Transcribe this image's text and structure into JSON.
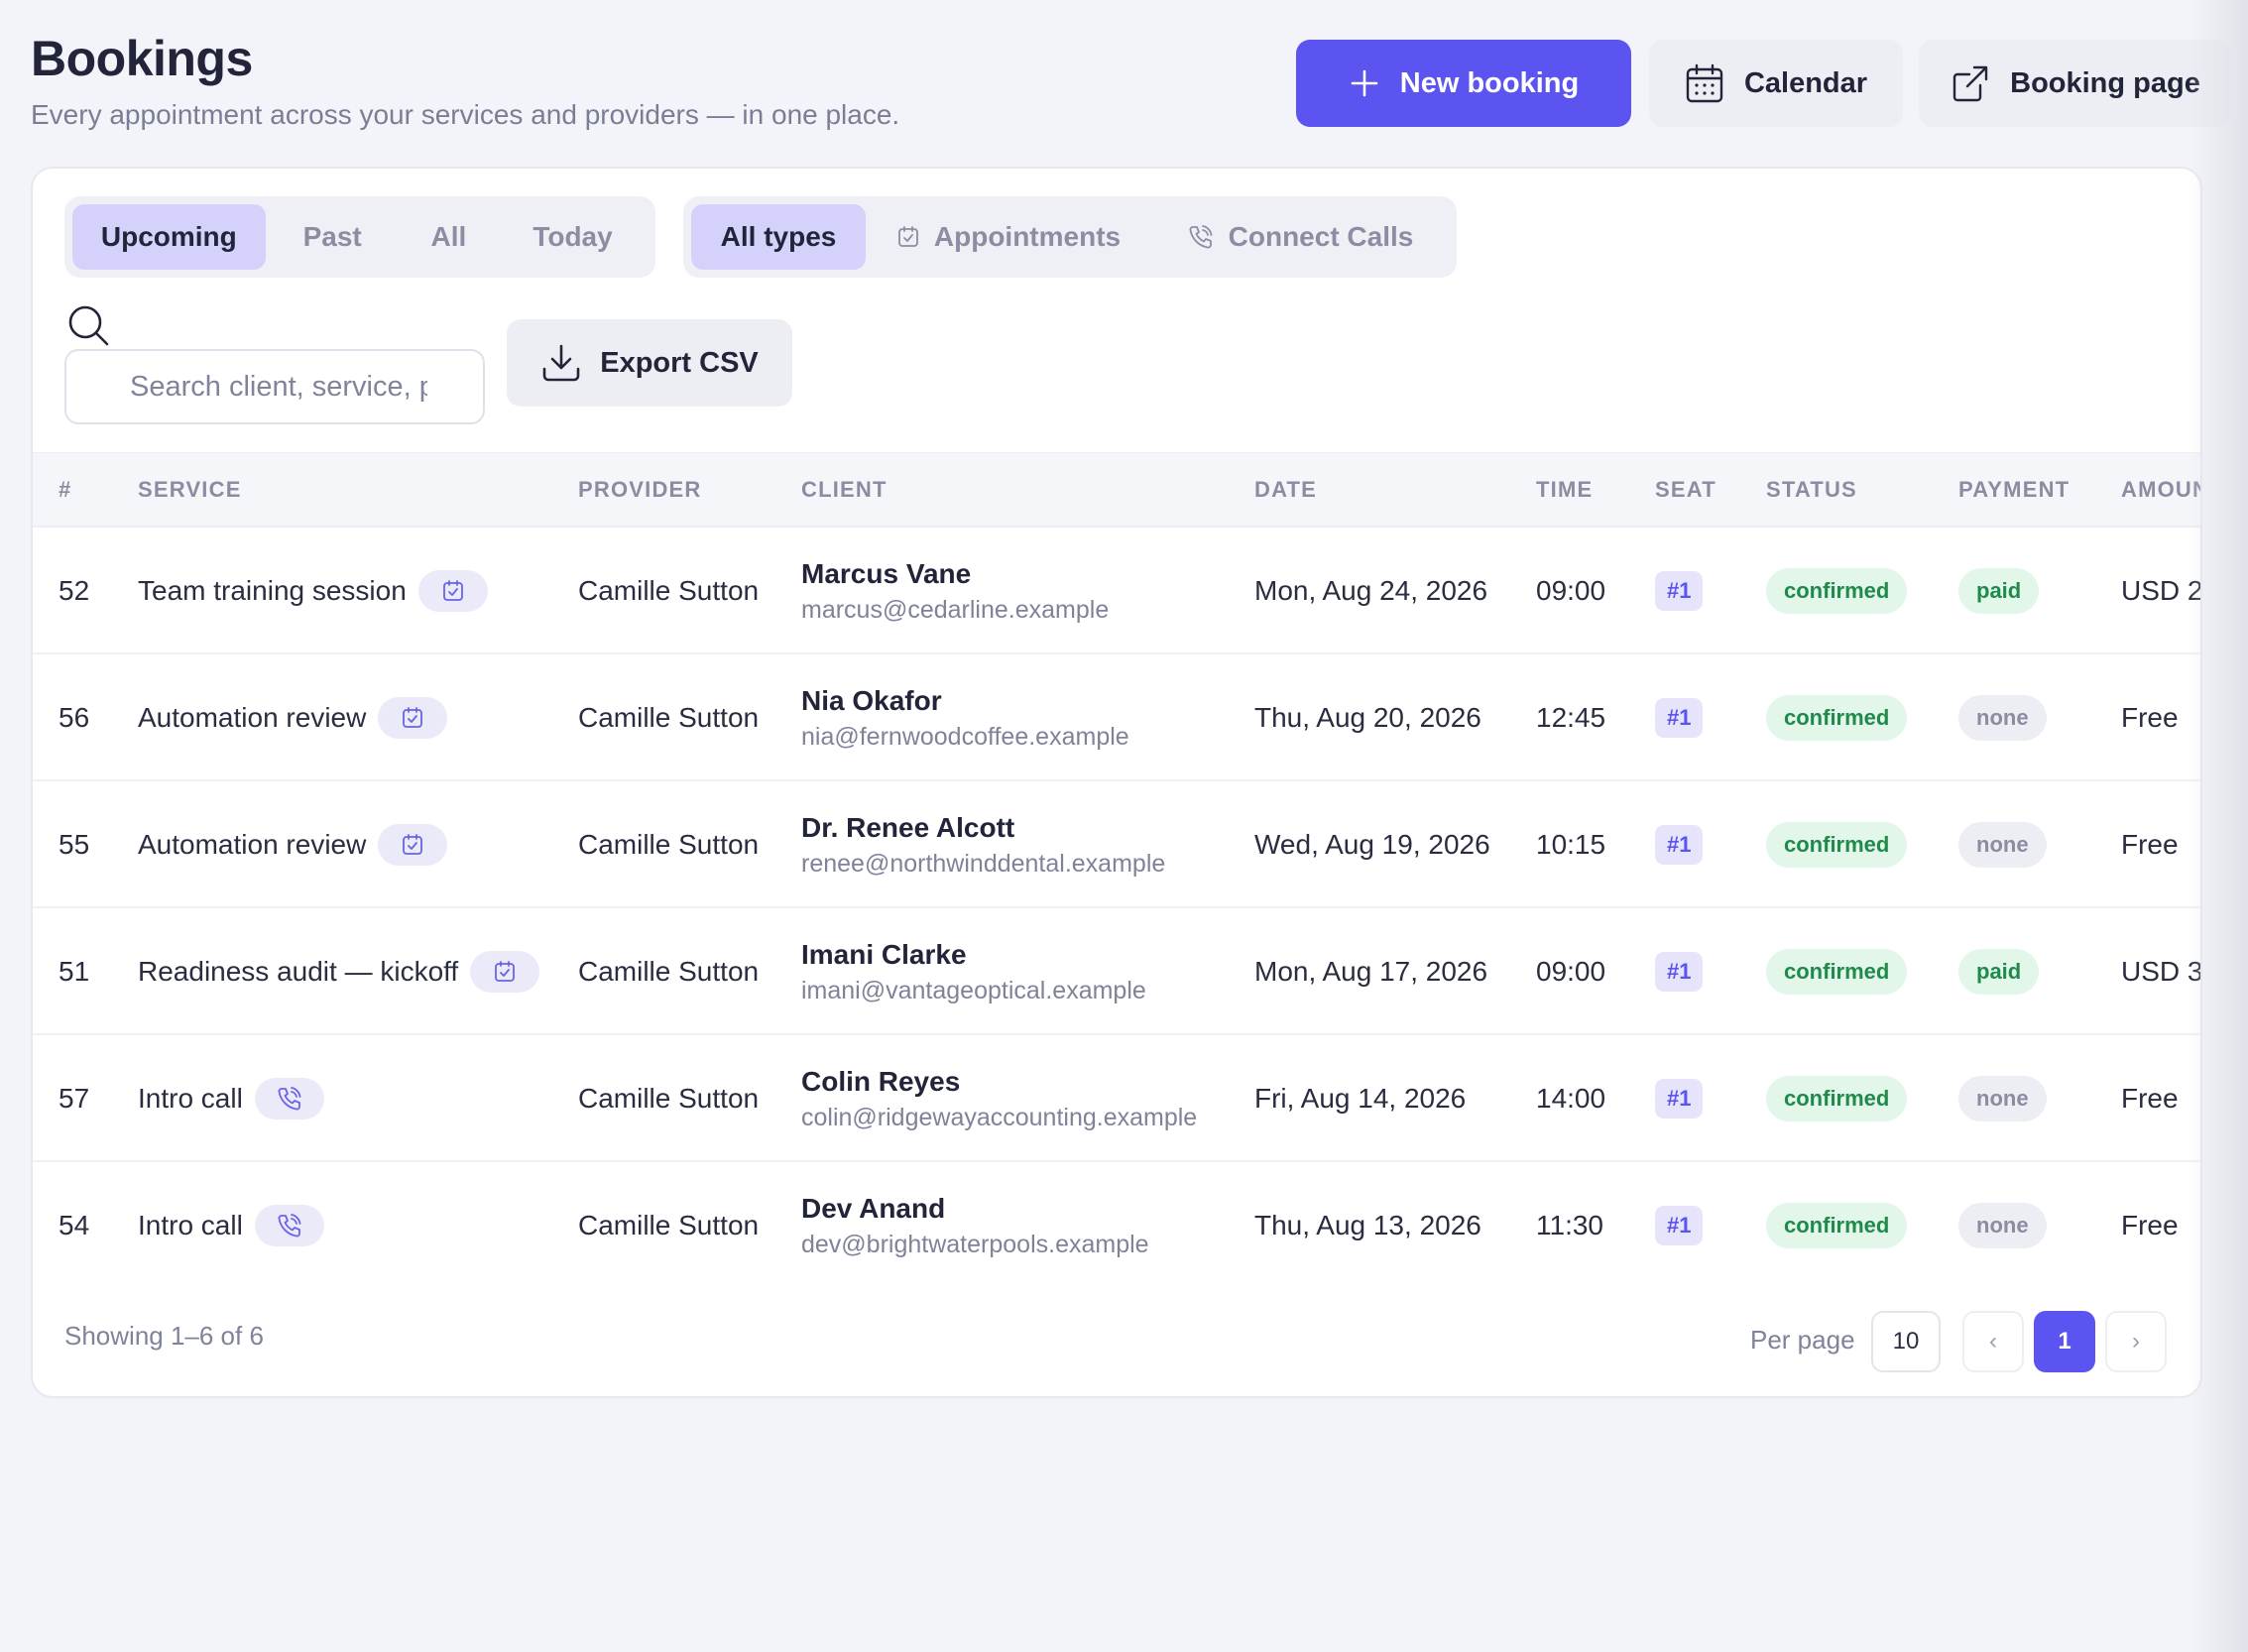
{
  "header": {
    "title": "Bookings",
    "subtitle": "Every appointment across your services and providers — in one place.",
    "new_booking_label": "New booking",
    "calendar_label": "Calendar",
    "booking_page_label": "Booking page"
  },
  "filters": {
    "time_tabs": [
      "Upcoming",
      "Past",
      "All",
      "Today"
    ],
    "time_active": "Upcoming",
    "type_tabs": [
      "All types",
      "Appointments",
      "Connect Calls"
    ],
    "type_active": "All types"
  },
  "search": {
    "placeholder": "Search client, service, provider…"
  },
  "export_label": "Export CSV",
  "table": {
    "columns": [
      "#",
      "SERVICE",
      "PROVIDER",
      "CLIENT",
      "DATE",
      "TIME",
      "SEAT",
      "STATUS",
      "PAYMENT",
      "AMOUNT"
    ],
    "rows": [
      {
        "id": "52",
        "service": "Team training session",
        "service_type": "appointment",
        "provider": "Camille Sutton",
        "client_name": "Marcus Vane",
        "client_email": "marcus@cedarline.example",
        "date": "Mon, Aug 24, 2026",
        "time": "09:00",
        "seat": "#1",
        "status": "confirmed",
        "payment": "paid",
        "amount": "USD 2"
      },
      {
        "id": "56",
        "service": "Automation review",
        "service_type": "appointment",
        "provider": "Camille Sutton",
        "client_name": "Nia Okafor",
        "client_email": "nia@fernwoodcoffee.example",
        "date": "Thu, Aug 20, 2026",
        "time": "12:45",
        "seat": "#1",
        "status": "confirmed",
        "payment": "none",
        "amount": "Free"
      },
      {
        "id": "55",
        "service": "Automation review",
        "service_type": "appointment",
        "provider": "Camille Sutton",
        "client_name": "Dr. Renee Alcott",
        "client_email": "renee@northwinddental.example",
        "date": "Wed, Aug 19, 2026",
        "time": "10:15",
        "seat": "#1",
        "status": "confirmed",
        "payment": "none",
        "amount": "Free"
      },
      {
        "id": "51",
        "service": "Readiness audit — kickoff",
        "service_type": "appointment",
        "provider": "Camille Sutton",
        "client_name": "Imani Clarke",
        "client_email": "imani@vantageoptical.example",
        "date": "Mon, Aug 17, 2026",
        "time": "09:00",
        "seat": "#1",
        "status": "confirmed",
        "payment": "paid",
        "amount": "USD 3"
      },
      {
        "id": "57",
        "service": "Intro call",
        "service_type": "call",
        "provider": "Camille Sutton",
        "client_name": "Colin Reyes",
        "client_email": "colin@ridgewayaccounting.example",
        "date": "Fri, Aug 14, 2026",
        "time": "14:00",
        "seat": "#1",
        "status": "confirmed",
        "payment": "none",
        "amount": "Free"
      },
      {
        "id": "54",
        "service": "Intro call",
        "service_type": "call",
        "provider": "Camille Sutton",
        "client_name": "Dev Anand",
        "client_email": "dev@brightwaterpools.example",
        "date": "Thu, Aug 13, 2026",
        "time": "11:30",
        "seat": "#1",
        "status": "confirmed",
        "payment": "none",
        "amount": "Free"
      }
    ]
  },
  "footer": {
    "showing": "Showing 1–6 of 6",
    "per_page_label": "Per page",
    "per_page_value": "10",
    "current_page": "1",
    "prev_glyph": "‹",
    "next_glyph": "›"
  },
  "colors": {
    "accent": "#5b54f0",
    "accent_soft": "#d4d2fa",
    "status_green": "#1f8a4c",
    "status_green_bg": "#e2f6ea",
    "neutral_pill_bg": "#eceef3"
  },
  "icons": {
    "new_booking": "plus-icon",
    "calendar": "calendar-icon",
    "booking_page": "external-link-icon",
    "appointments": "calendar-check-icon",
    "connect_calls": "phone-icon",
    "search": "search-icon",
    "export": "download-icon"
  }
}
